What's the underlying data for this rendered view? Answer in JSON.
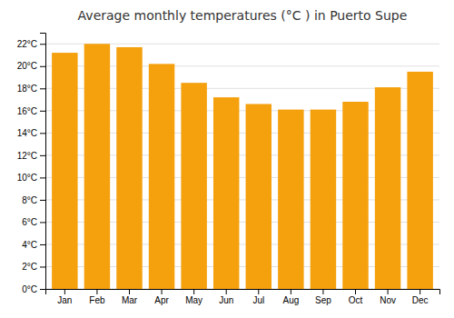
{
  "chart_data": {
    "type": "bar",
    "title": "Average monthly temperatures (°C ) in Puerto Supe",
    "categories": [
      "Jan",
      "Feb",
      "Mar",
      "Apr",
      "May",
      "Jun",
      "Jul",
      "Aug",
      "Sep",
      "Oct",
      "Nov",
      "Dec"
    ],
    "values": [
      21.2,
      22.0,
      21.7,
      20.2,
      18.5,
      17.2,
      16.6,
      16.1,
      16.1,
      16.8,
      18.1,
      19.5
    ],
    "color": "#F5A00D",
    "ylim": [
      0,
      23
    ],
    "yticks": [
      {
        "value": 0,
        "label": "0°C"
      },
      {
        "value": 2,
        "label": "2°C"
      },
      {
        "value": 4,
        "label": "4°C"
      },
      {
        "value": 6,
        "label": "6°C"
      },
      {
        "value": 8,
        "label": "8°C"
      },
      {
        "value": 10,
        "label": "10°C"
      },
      {
        "value": 12,
        "label": "12°C"
      },
      {
        "value": 14,
        "label": "14°C"
      },
      {
        "value": 16,
        "label": "16°C"
      },
      {
        "value": 18,
        "label": "18°C"
      },
      {
        "value": 20,
        "label": "20°C"
      },
      {
        "value": 22,
        "label": "22°C"
      }
    ],
    "grid": true
  }
}
